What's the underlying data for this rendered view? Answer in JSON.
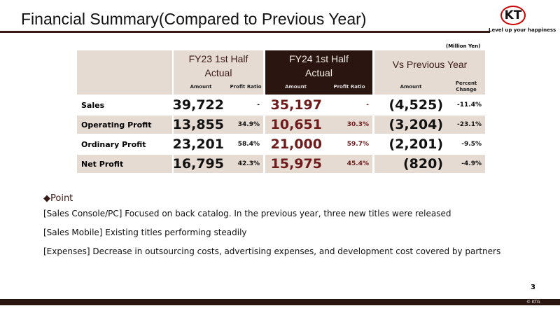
{
  "header": {
    "title": "Financial Summary(Compared to Previous Year)",
    "logo": "KT",
    "tagline": "Level up your happiness"
  },
  "table": {
    "unit": "(Million Yen)",
    "groups": [
      [
        "FY23 1st Half",
        "Actual"
      ],
      [
        "FY24 1st Half",
        "Actual"
      ],
      [
        "Vs Previous Year"
      ]
    ],
    "subheaders": [
      "Amount",
      "Profit Ratio",
      "Amount",
      "Profit Ratio",
      "Amount",
      "Percent Change"
    ],
    "rows": [
      {
        "label": "Sales",
        "cells": [
          "39,722",
          "-",
          "35,197",
          "-",
          "(4,525)",
          "-11.4%"
        ]
      },
      {
        "label": "Operating Profit",
        "cells": [
          "13,855",
          "34.9%",
          "10,651",
          "30.3%",
          "(3,204)",
          "-23.1%"
        ]
      },
      {
        "label": "Ordinary Profit",
        "cells": [
          "23,201",
          "58.4%",
          "21,000",
          "59.7%",
          "(2,201)",
          "-9.5%"
        ]
      },
      {
        "label": "Net Profit",
        "cells": [
          "16,795",
          "42.3%",
          "15,975",
          "45.4%",
          "(820)",
          "-4.9%"
        ]
      }
    ]
  },
  "points": {
    "heading": "◆Point",
    "items": [
      "[Sales Console/PC] Focused on back catalog. In the previous year, three new titles were released",
      "[Sales Mobile] Existing titles performing steadily",
      "[Expenses] Decrease in outsourcing costs, advertising expenses, and development cost covered by partners"
    ]
  },
  "footer": {
    "page": "3",
    "copyright": "© KTG"
  }
}
